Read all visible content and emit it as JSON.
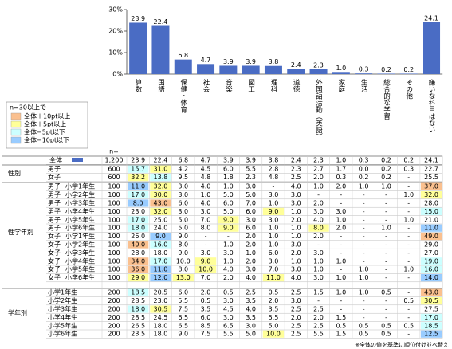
{
  "chart_data": {
    "type": "bar",
    "categories": [
      "算数",
      "国語",
      "保健・体育",
      "社会",
      "音楽",
      "図工",
      "理科",
      "道徳",
      "外国語活動（英語）",
      "家庭",
      "生活",
      "総合的な学習",
      "その他",
      "嫌いな科目はない"
    ],
    "values": [
      23.9,
      22.4,
      6.8,
      4.7,
      3.9,
      3.9,
      3.8,
      2.4,
      2.3,
      1.0,
      0.3,
      0.2,
      0.2,
      24.1
    ],
    "value_labels": [
      "23.9",
      "22.4",
      "6.8",
      "4.7",
      "3.9",
      "3.9",
      "3.8",
      "2.4",
      "2.3",
      "1.0",
      "0.3",
      "0.2",
      "0.2",
      "24.1"
    ],
    "color": "#4A6CC4",
    "ylim": [
      0,
      30
    ],
    "yticks": [
      {
        "value": 0,
        "label": "0%"
      },
      {
        "value": 10,
        "label": "10%"
      },
      {
        "value": 20,
        "label": "20%"
      },
      {
        "value": 30,
        "label": "30%"
      }
    ]
  },
  "legend": {
    "title": "n=30以上で",
    "items": [
      {
        "label": "全体＋10pt以上",
        "color": "#FAC08F"
      },
      {
        "label": "全体＋5pt以上",
        "color": "#FFFF99"
      },
      {
        "label": "全体−5pt以下",
        "color": "#CCFFFF"
      },
      {
        "label": "全体−10pt以下",
        "color": "#99CCFF"
      }
    ]
  },
  "table": {
    "n_header": "n=",
    "total": {
      "label": "全体",
      "n": "1,200",
      "cells": [
        "23.9",
        "22.4",
        "6.8",
        "4.7",
        "3.9",
        "3.9",
        "3.8",
        "2.4",
        "2.3",
        "1.0",
        "0.3",
        "0.2",
        "0.2",
        "24.1"
      ]
    },
    "groups": [
      {
        "label": "性別",
        "rows": [
          {
            "labels": [
              "男子"
            ],
            "n": "600",
            "cells": [
              "15.7",
              "31.0",
              "4.2",
              "4.5",
              "6.0",
              "5.5",
              "2.8",
              "2.3",
              "2.7",
              "1.7",
              "0.0",
              "0.2",
              "0.3",
              "22.7"
            ],
            "colors": [
              "#CCFFFF",
              "#FFFF99",
              null,
              null,
              null,
              null,
              null,
              null,
              null,
              null,
              null,
              null,
              null,
              null
            ]
          },
          {
            "labels": [
              "女子"
            ],
            "n": "600",
            "cells": [
              "32.2",
              "13.8",
              "9.5",
              "4.8",
              "1.8",
              "2.3",
              "4.8",
              "2.5",
              "2.0",
              "0.3",
              "0.2",
              "0.2",
              "-",
              "25.5"
            ],
            "colors": [
              "#FFFF99",
              "#CCFFFF",
              null,
              null,
              null,
              null,
              null,
              null,
              null,
              null,
              null,
              null,
              null,
              null
            ]
          }
        ]
      },
      {
        "label": "性学年別",
        "rows": [
          {
            "labels": [
              "男子",
              "小学1年生"
            ],
            "n": "100",
            "cells": [
              "11.0",
              "32.0",
              "3.0",
              "4.0",
              "1.0",
              "3.0",
              "-",
              "4.0",
              "1.0",
              "2.0",
              "1.0",
              "1.0",
              "-",
              "37.0"
            ],
            "colors": [
              "#99CCFF",
              "#FFFF99",
              null,
              null,
              null,
              null,
              null,
              null,
              null,
              null,
              null,
              null,
              null,
              "#FAC08F"
            ]
          },
          {
            "labels": [
              "男子",
              "小学2年生"
            ],
            "n": "100",
            "cells": [
              "17.0",
              "30.0",
              "3.0",
              "1.0",
              "5.0",
              "5.0",
              "3.0",
              "3.0",
              "-",
              "-",
              "-",
              "-",
              "1.0",
              "32.0"
            ],
            "colors": [
              "#CCFFFF",
              "#FFFF99",
              null,
              null,
              null,
              null,
              null,
              null,
              null,
              null,
              null,
              null,
              null,
              "#FFFF99"
            ]
          },
          {
            "labels": [
              "男子",
              "小学3年生"
            ],
            "n": "100",
            "cells": [
              "8.0",
              "43.0",
              "6.0",
              "4.0",
              "6.0",
              "7.0",
              "1.0",
              "3.0",
              "2.0",
              "-",
              "-",
              "-",
              "-",
              "28.0"
            ],
            "colors": [
              "#99CCFF",
              "#FAC08F",
              null,
              null,
              null,
              null,
              null,
              null,
              null,
              null,
              null,
              null,
              null,
              null
            ]
          },
          {
            "labels": [
              "男子",
              "小学4年生"
            ],
            "n": "100",
            "cells": [
              "23.0",
              "32.0",
              "3.0",
              "3.0",
              "5.0",
              "6.0",
              "9.0",
              "1.0",
              "3.0",
              "3.0",
              "-",
              "-",
              "-",
              "15.0"
            ],
            "colors": [
              null,
              "#FFFF99",
              null,
              null,
              null,
              null,
              "#FFFF99",
              null,
              null,
              null,
              null,
              null,
              null,
              "#CCFFFF"
            ]
          },
          {
            "labels": [
              "男子",
              "小学5年生"
            ],
            "n": "100",
            "cells": [
              "17.0",
              "25.0",
              "5.0",
              "7.0",
              "9.0",
              "3.0",
              "3.0",
              "2.0",
              "4.0",
              "1.0",
              "-",
              "-",
              "1.0",
              "21.0"
            ],
            "colors": [
              "#CCFFFF",
              null,
              null,
              null,
              "#FFFF99",
              null,
              null,
              null,
              null,
              null,
              null,
              null,
              null,
              null
            ]
          },
          {
            "labels": [
              "男子",
              "小学6年生"
            ],
            "n": "100",
            "cells": [
              "18.0",
              "24.0",
              "5.0",
              "8.0",
              "9.0",
              "6.0",
              "1.0",
              "1.0",
              "8.0",
              "2.0",
              "-",
              "1.0",
              "-",
              "11.0"
            ],
            "colors": [
              "#CCFFFF",
              null,
              null,
              null,
              "#FFFF99",
              null,
              null,
              null,
              "#FFFF99",
              null,
              null,
              null,
              null,
              "#99CCFF"
            ]
          },
          {
            "labels": [
              "女子",
              "小学1年生"
            ],
            "n": "100",
            "cells": [
              "26.0",
              "9.0",
              "9.0",
              "-",
              "-",
              "2.0",
              "1.0",
              "1.0",
              "2.0",
              "-",
              "-",
              "-",
              "-",
              "49.0"
            ],
            "colors": [
              null,
              "#99CCFF",
              null,
              null,
              null,
              null,
              null,
              null,
              null,
              null,
              null,
              null,
              null,
              "#FAC08F"
            ]
          },
          {
            "labels": [
              "女子",
              "小学2年生"
            ],
            "n": "100",
            "cells": [
              "40.0",
              "16.0",
              "8.0",
              "-",
              "1.0",
              "2.0",
              "1.0",
              "3.0",
              "-",
              "-",
              "-",
              "-",
              "-",
              "29.0"
            ],
            "colors": [
              "#FAC08F",
              "#CCFFFF",
              null,
              null,
              null,
              null,
              null,
              null,
              null,
              null,
              null,
              null,
              null,
              null
            ]
          },
          {
            "labels": [
              "女子",
              "小学3年生"
            ],
            "n": "100",
            "cells": [
              "28.0",
              "18.0",
              "9.0",
              "3.0",
              "3.0",
              "1.0",
              "6.0",
              "2.0",
              "3.0",
              "-",
              "-",
              "-",
              "-",
              "27.0"
            ],
            "colors": [
              null,
              null,
              null,
              null,
              null,
              null,
              null,
              null,
              null,
              null,
              null,
              null,
              null,
              null
            ]
          },
          {
            "labels": [
              "女子",
              "小学4年生"
            ],
            "n": "100",
            "cells": [
              "34.0",
              "17.0",
              "10.0",
              "9.0",
              "1.0",
              "2.0",
              "3.0",
              "1.0",
              "1.0",
              "1.0",
              "-",
              "-",
              "-",
              "19.0"
            ],
            "colors": [
              "#FAC08F",
              "#CCFFFF",
              null,
              "#FFFF99",
              null,
              null,
              null,
              null,
              null,
              null,
              null,
              null,
              null,
              "#CCFFFF"
            ]
          },
          {
            "labels": [
              "女子",
              "小学5年生"
            ],
            "n": "100",
            "cells": [
              "36.0",
              "11.0",
              "8.0",
              "10.0",
              "4.0",
              "3.0",
              "7.0",
              "3.0",
              "1.0",
              "-",
              "1.0",
              "-",
              "1.0",
              "16.0"
            ],
            "colors": [
              "#FAC08F",
              "#99CCFF",
              null,
              "#FFFF99",
              null,
              null,
              null,
              null,
              null,
              null,
              null,
              null,
              null,
              "#CCFFFF"
            ]
          },
          {
            "labels": [
              "女子",
              "小学6年生"
            ],
            "n": "100",
            "cells": [
              "29.0",
              "12.0",
              "13.0",
              "7.0",
              "2.0",
              "4.0",
              "11.0",
              "4.0",
              "3.0",
              "1.0",
              "1.0",
              "-",
              "-",
              "14.0"
            ],
            "colors": [
              "#FFFF99",
              "#99CCFF",
              "#FFFF99",
              null,
              null,
              null,
              "#FFFF99",
              null,
              null,
              null,
              null,
              null,
              null,
              "#99CCFF"
            ]
          }
        ]
      },
      {
        "label": "学年別",
        "rows": [
          {
            "labels": [
              "小学1年生"
            ],
            "n": "200",
            "cells": [
              "18.5",
              "20.5",
              "6.0",
              "2.0",
              "0.5",
              "2.5",
              "0.5",
              "2.5",
              "1.5",
              "1.0",
              "1.0",
              "0.5",
              "-",
              "43.0"
            ],
            "colors": [
              "#CCFFFF",
              null,
              null,
              null,
              null,
              null,
              null,
              null,
              null,
              null,
              null,
              null,
              null,
              "#FAC08F"
            ]
          },
          {
            "labels": [
              "小学2年生"
            ],
            "n": "200",
            "cells": [
              "28.5",
              "23.0",
              "5.5",
              "0.5",
              "3.0",
              "3.5",
              "2.0",
              "3.0",
              "-",
              "-",
              "-",
              "-",
              "0.5",
              "30.5"
            ],
            "colors": [
              null,
              null,
              null,
              null,
              null,
              null,
              null,
              null,
              null,
              null,
              null,
              null,
              null,
              "#FFFF99"
            ]
          },
          {
            "labels": [
              "小学3年生"
            ],
            "n": "200",
            "cells": [
              "18.0",
              "30.5",
              "7.5",
              "3.5",
              "4.5",
              "4.0",
              "3.5",
              "2.5",
              "2.5",
              "-",
              "-",
              "-",
              "-",
              "27.5"
            ],
            "colors": [
              "#CCFFFF",
              "#FFFF99",
              null,
              null,
              null,
              null,
              null,
              null,
              null,
              null,
              null,
              null,
              null,
              null
            ]
          },
          {
            "labels": [
              "小学4年生"
            ],
            "n": "200",
            "cells": [
              "28.5",
              "24.5",
              "6.5",
              "6.0",
              "3.0",
              "3.5",
              "5.5",
              "2.0",
              "2.0",
              "1.5",
              "-",
              "-",
              "-",
              "17.0"
            ],
            "colors": [
              null,
              null,
              null,
              null,
              null,
              null,
              null,
              null,
              null,
              null,
              null,
              null,
              null,
              "#CCFFFF"
            ]
          },
          {
            "labels": [
              "小学5年生"
            ],
            "n": "200",
            "cells": [
              "26.5",
              "18.0",
              "6.5",
              "8.5",
              "6.5",
              "3.0",
              "5.0",
              "2.5",
              "2.5",
              "0.5",
              "0.5",
              "0.5",
              "0.5",
              "18.5"
            ],
            "colors": [
              null,
              null,
              null,
              null,
              null,
              null,
              null,
              null,
              null,
              null,
              null,
              null,
              null,
              "#CCFFFF"
            ]
          },
          {
            "labels": [
              "小学6年生"
            ],
            "n": "200",
            "cells": [
              "23.5",
              "18.0",
              "9.0",
              "7.5",
              "5.5",
              "5.0",
              "10.0",
              "2.5",
              "5.5",
              "1.5",
              "0.5",
              "0.5",
              "-",
              "12.5"
            ],
            "colors": [
              null,
              null,
              null,
              null,
              null,
              null,
              "#FFFF99",
              null,
              null,
              null,
              null,
              null,
              null,
              "#99CCFF"
            ]
          }
        ]
      }
    ]
  },
  "footnote": "※全体の値を基準に順位付け並べ替え"
}
